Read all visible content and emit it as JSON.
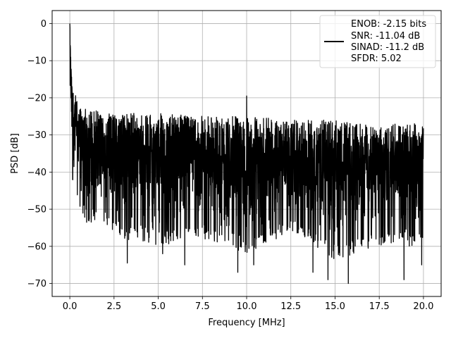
{
  "chart_data": {
    "type": "line",
    "title": "",
    "xlabel": "Frequency [MHz]",
    "ylabel": "PSD [dB]",
    "xlim": [
      -1.0,
      21.0
    ],
    "ylim": [
      -73.5,
      3.5
    ],
    "xticks": [
      0.0,
      2.5,
      5.0,
      7.5,
      10.0,
      12.5,
      15.0,
      17.5,
      20.0
    ],
    "xtick_labels": [
      "0.0",
      "2.5",
      "5.0",
      "7.5",
      "10.0",
      "12.5",
      "15.0",
      "17.5",
      "20.0"
    ],
    "yticks": [
      0,
      -10,
      -20,
      -30,
      -40,
      -50,
      -60,
      -70
    ],
    "ytick_labels": [
      "0",
      "−10",
      "−20",
      "−30",
      "−40",
      "−50",
      "−60",
      "−70"
    ],
    "grid": true,
    "legend": {
      "placement": "top-right",
      "entries": [
        "ENOB: -2.15 bits",
        "SNR: -11.04 dB",
        "SINAD: -11.2 dB",
        "SFDR: 5.02"
      ]
    },
    "series": [
      {
        "color": "#000000",
        "noise_envelope": {
          "x": [
            0.0,
            0.1,
            0.3,
            0.5,
            1.0,
            2.0,
            3.0,
            5.0,
            7.5,
            10.0,
            12.5,
            15.0,
            17.5,
            20.0
          ],
          "upper": [
            0,
            -14,
            -19,
            -22,
            -23,
            -24,
            -24,
            -24,
            -25,
            -25,
            -26,
            -26,
            -27,
            -27
          ],
          "lower": [
            -20,
            -42,
            -45,
            -50,
            -54,
            -54,
            -58,
            -60,
            -58,
            -62,
            -56,
            -64,
            -60,
            -60
          ]
        },
        "peaks": [
          {
            "x": 0.0,
            "y": 0.0
          },
          {
            "x": 10.0,
            "y": -19.5
          }
        ],
        "dips": [
          {
            "x": 3.25,
            "y": -64.5
          },
          {
            "x": 5.25,
            "y": -62.0
          },
          {
            "x": 6.5,
            "y": -65.0
          },
          {
            "x": 9.5,
            "y": -67.0
          },
          {
            "x": 10.4,
            "y": -65.0
          },
          {
            "x": 13.75,
            "y": -67.0
          },
          {
            "x": 14.6,
            "y": -69.0
          },
          {
            "x": 15.75,
            "y": -70.0
          },
          {
            "x": 18.9,
            "y": -69.0
          },
          {
            "x": 19.9,
            "y": -65.0
          }
        ]
      }
    ]
  }
}
